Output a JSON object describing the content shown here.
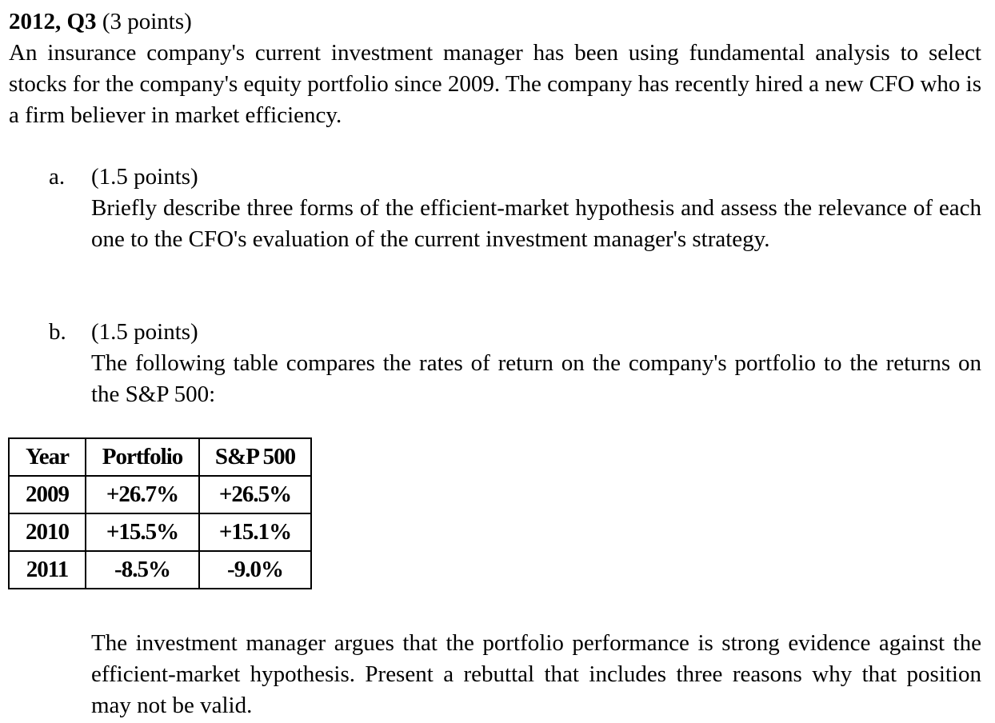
{
  "question": {
    "heading_bold": "2012, Q3",
    "heading_points": "(3 points)",
    "intro": "An insurance company's current investment manager has been using fundamental analysis to select stocks for the company's equity portfolio since 2009. The company has recently hired a new CFO who is a firm believer in market efficiency."
  },
  "part_a": {
    "marker": "a.",
    "points": "(1.5 points)",
    "text": "Briefly describe three forms of the efficient-market hypothesis and assess the relevance of each one to the CFO's evaluation of the current investment manager's strategy."
  },
  "part_b": {
    "marker": "b.",
    "points": "(1.5 points)",
    "text": "The following table compares the rates of return on the company's portfolio to the returns on the S&P 500:",
    "followup": "The investment manager argues that the portfolio performance is strong evidence against the efficient-market hypothesis. Present a rebuttal that includes three reasons why that position may not be valid."
  },
  "table": {
    "headers": [
      "Year",
      "Portfolio",
      "S&P 500"
    ],
    "rows": [
      [
        "2009",
        "+26.7%",
        "+26.5%"
      ],
      [
        "2010",
        "+15.5%",
        "+15.1%"
      ],
      [
        "2011",
        "-8.5%",
        "-9.0%"
      ]
    ]
  }
}
